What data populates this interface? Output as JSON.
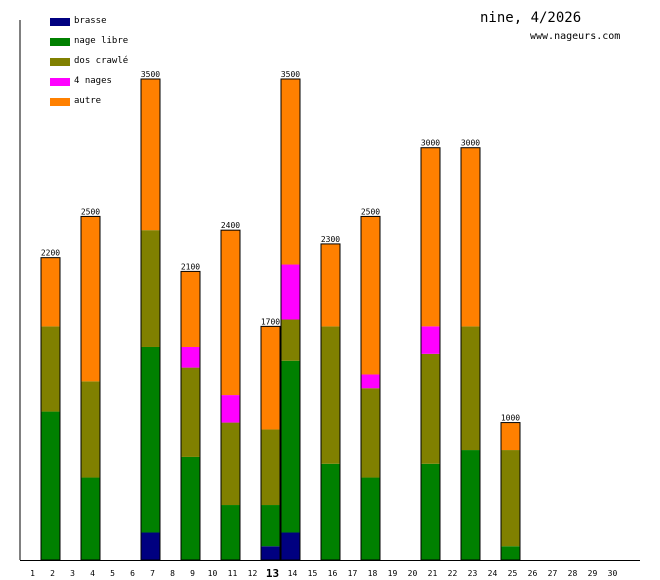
{
  "header": {
    "title": "nine, 4/2026",
    "site": "www.nageurs.com"
  },
  "colors": {
    "brasse": "#000080",
    "nage libre": "#008000",
    "dos crawlé": "#808000",
    "4 nages": "#ff00ff",
    "autre": "#ff8000"
  },
  "chart_data": {
    "type": "bar",
    "stacked": true,
    "title": "nine, 4/2026",
    "xlabel": "",
    "ylabel": "",
    "ylim": [
      0,
      3500
    ],
    "highlight_day": 13,
    "categories": [
      1,
      2,
      3,
      4,
      5,
      6,
      7,
      8,
      9,
      10,
      11,
      12,
      13,
      14,
      15,
      16,
      17,
      18,
      19,
      20,
      21,
      22,
      23,
      24,
      25,
      26,
      27,
      28,
      29,
      30
    ],
    "legend": [
      "brasse",
      "nage libre",
      "dos crawlé",
      "4 nages",
      "autre"
    ],
    "totals": [
      null,
      2200,
      null,
      2500,
      null,
      null,
      3500,
      null,
      2100,
      null,
      2400,
      null,
      1700,
      3500,
      null,
      2300,
      null,
      2500,
      null,
      null,
      3000,
      null,
      3000,
      null,
      1000,
      null,
      null,
      null,
      null,
      null
    ],
    "series": [
      {
        "name": "brasse",
        "values": [
          0,
          0,
          0,
          0,
          0,
          0,
          200,
          0,
          0,
          0,
          0,
          0,
          100,
          200,
          0,
          0,
          0,
          0,
          0,
          0,
          0,
          0,
          0,
          0,
          0,
          0,
          0,
          0,
          0,
          0
        ]
      },
      {
        "name": "nage libre",
        "values": [
          0,
          1080,
          0,
          600,
          0,
          0,
          1350,
          0,
          750,
          0,
          400,
          0,
          300,
          1250,
          0,
          700,
          0,
          600,
          0,
          0,
          700,
          0,
          800,
          0,
          100,
          0,
          0,
          0,
          0,
          0
        ]
      },
      {
        "name": "dos crawlé",
        "values": [
          0,
          620,
          0,
          700,
          0,
          0,
          850,
          0,
          650,
          0,
          600,
          0,
          550,
          300,
          0,
          1000,
          0,
          650,
          0,
          0,
          800,
          0,
          900,
          0,
          700,
          0,
          0,
          0,
          0,
          0
        ]
      },
      {
        "name": "4 nages",
        "values": [
          0,
          0,
          0,
          0,
          0,
          0,
          0,
          0,
          150,
          0,
          200,
          0,
          0,
          400,
          0,
          0,
          0,
          100,
          0,
          0,
          200,
          0,
          0,
          0,
          0,
          0,
          0,
          0,
          0,
          0
        ]
      },
      {
        "name": "autre",
        "values": [
          0,
          500,
          0,
          1200,
          0,
          0,
          1100,
          0,
          550,
          0,
          1200,
          0,
          750,
          1350,
          0,
          600,
          0,
          1150,
          0,
          0,
          1300,
          0,
          1300,
          0,
          200,
          0,
          0,
          0,
          0,
          0
        ]
      }
    ]
  }
}
